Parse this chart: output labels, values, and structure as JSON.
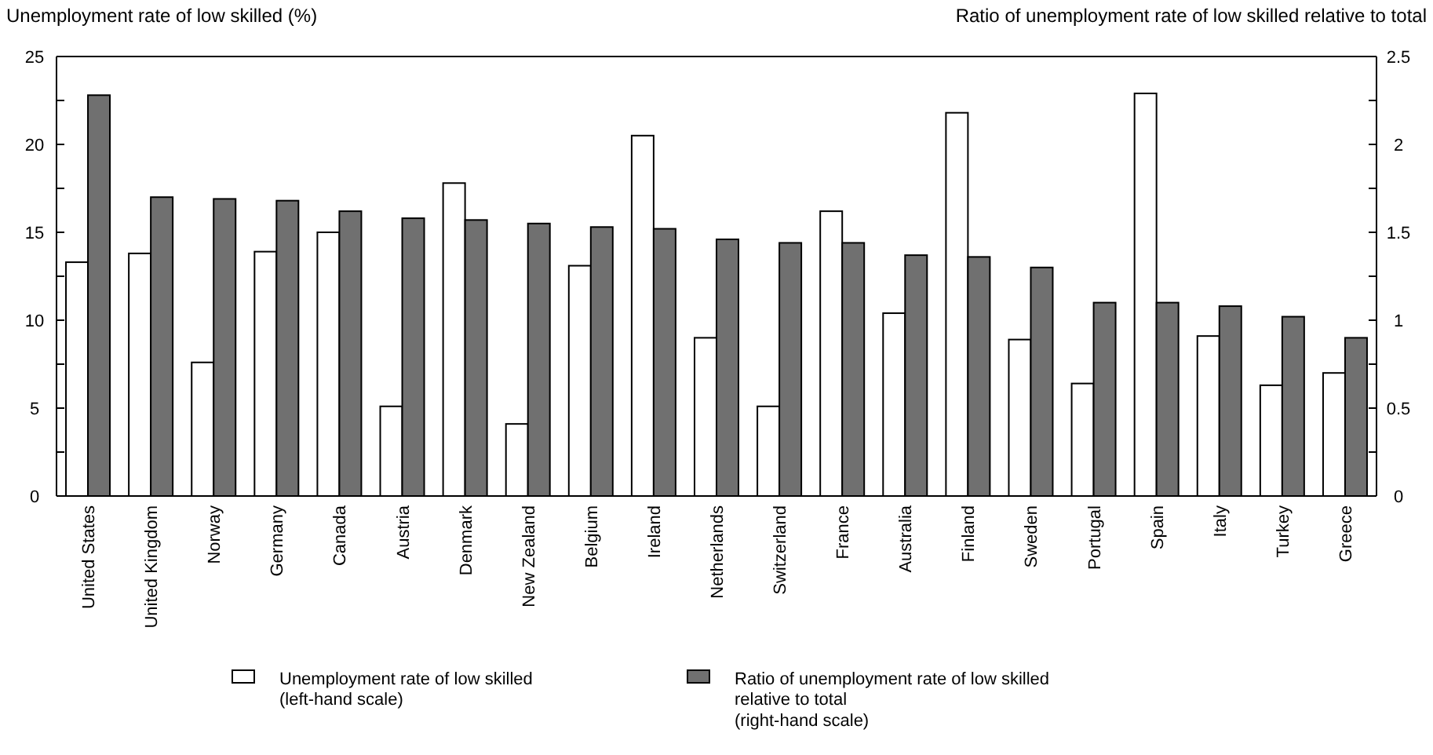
{
  "chart_data": {
    "type": "bar",
    "ylabel": "Unemployment rate of low skilled (%)",
    "y2label": "Ratio of unemployment rate of low skilled relative to total",
    "categories": [
      "United States",
      "United Kingdom",
      "Norway",
      "Germany",
      "Canada",
      "Austria",
      "Denmark",
      "New Zealand",
      "Belgium",
      "Ireland",
      "Netherlands",
      "Switzerland",
      "France",
      "Australia",
      "Finland",
      "Sweden",
      "Portugal",
      "Spain",
      "Italy",
      "Turkey",
      "Greece"
    ],
    "series": [
      {
        "name": "Unemployment rate of low skilled\n(left-hand scale)",
        "color": "#ffffff",
        "values": [
          13.3,
          13.8,
          7.6,
          13.9,
          15.0,
          5.1,
          17.8,
          4.1,
          13.1,
          20.5,
          9.0,
          5.1,
          16.2,
          10.4,
          21.8,
          8.9,
          6.4,
          22.9,
          9.1,
          6.3,
          7.0
        ]
      },
      {
        "name": "Ratio of unemployment rate of low skilled\nrelative to total\n(right-hand scale)",
        "color": "#707070",
        "axis": "y2",
        "values": [
          2.28,
          1.7,
          1.69,
          1.68,
          1.62,
          1.58,
          1.57,
          1.55,
          1.53,
          1.52,
          1.46,
          1.44,
          1.44,
          1.37,
          1.36,
          1.3,
          1.1,
          1.1,
          1.08,
          1.02,
          0.9
        ]
      }
    ],
    "ylim": [
      0,
      25
    ],
    "yticks": [
      0,
      {
        "value": 2.5,
        "label": null
      },
      5,
      {
        "value": 7.5,
        "label": null
      },
      10,
      {
        "value": 12.5,
        "label": null
      },
      15,
      {
        "value": 17.5,
        "label": null
      },
      20,
      {
        "value": 22.5,
        "label": null
      },
      25
    ],
    "y2lim": [
      0,
      2.5
    ],
    "y2ticks": [
      0,
      {
        "value": 0.25,
        "label": null
      },
      0.5,
      {
        "value": 0.75,
        "label": null
      },
      1,
      {
        "value": 1.25,
        "label": null
      },
      1.5,
      {
        "value": 1.75,
        "label": null
      },
      2,
      {
        "value": 2.25,
        "label": null
      },
      2.5
    ],
    "grid": false,
    "legend": "bottom"
  }
}
